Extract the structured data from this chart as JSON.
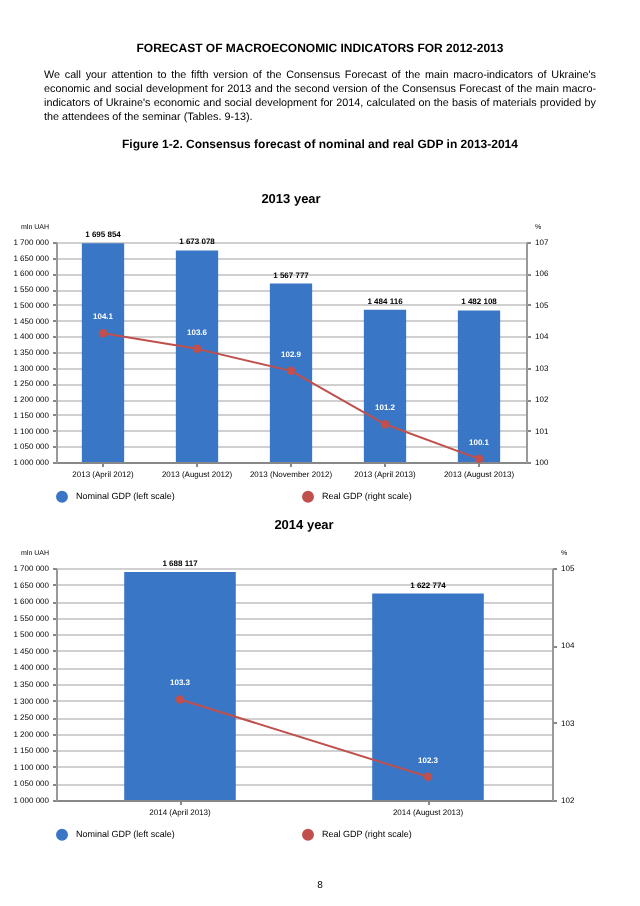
{
  "chart_data": [
    {
      "type": "bar",
      "title": "2013 year",
      "ylabel": "mln UAH",
      "y2label": "%",
      "annotations": [
        "FORECAST OF MACROECONOMIC INDICATORS FOR 2012-2013",
        "We call your attention to the fifth version of the Consensus Forecast of the main macro-indicators of Ukraine's economic and social development for 2013 and the second version of the Consensus Forecast of the main macro-indicators of Ukraine's economic and social development for 2014, calculated on the basis of materials provided by the attendees of the seminar (Tables. 9-13).",
        "Figure 1-2. Consensus forecast of nominal and real GDP in 2013-2014"
      ],
      "categories": [
        "2013 (April 2012)",
        "2013 (August 2012)",
        "2013 (November 2012)",
        "2013 (April 2013)",
        "2013 (August 2013)"
      ],
      "series": [
        {
          "name": "Nominal GDP (left scale)",
          "color": "#3a76c6",
          "values": [
            1695854,
            1673078,
            1567777,
            1484116,
            1482108
          ],
          "value_labels": [
            "1 695 854",
            "1 673 078",
            "1 567 777",
            "1 484 116",
            "1 482 108"
          ]
        },
        {
          "name": "Real GDP (right scale)",
          "type": "line",
          "axis": "y2",
          "color": "#c0504d",
          "values": [
            104.1,
            103.6,
            102.9,
            101.2,
            100.1
          ],
          "value_labels": [
            "104.1",
            "103.6",
            "102.9",
            "101.2",
            "100.1"
          ]
        }
      ],
      "ylim": [
        1000000,
        1700000
      ],
      "yticks": [
        {
          "value": 1000000,
          "label": "1 000 000"
        },
        {
          "value": 1050000,
          "label": "1 050 000"
        },
        {
          "value": 1100000,
          "label": "1 100 000"
        },
        {
          "value": 1150000,
          "label": "1 150 000"
        },
        {
          "value": 1200000,
          "label": "1 200 000"
        },
        {
          "value": 1250000,
          "label": "1 250 000"
        },
        {
          "value": 1300000,
          "label": "1 300 000"
        },
        {
          "value": 1350000,
          "label": "1 350 000"
        },
        {
          "value": 1400000,
          "label": "1 400 000"
        },
        {
          "value": 1450000,
          "label": "1 450 000"
        },
        {
          "value": 1500000,
          "label": "1 500 000"
        },
        {
          "value": 1550000,
          "label": "1 550 000"
        },
        {
          "value": 1600000,
          "label": "1 600 000"
        },
        {
          "value": 1650000,
          "label": "1 650 000"
        },
        {
          "value": 1700000,
          "label": "1 700 000"
        }
      ],
      "y2lim": [
        100,
        107
      ],
      "y2ticks": [
        100,
        101,
        102,
        103,
        104,
        105,
        106,
        107
      ],
      "grid": "y",
      "legend": "bottom",
      "marker": "circle"
    },
    {
      "type": "bar",
      "title": "2014 year",
      "ylabel": "mln UAH",
      "y2label": "%",
      "annotations": [
        "8"
      ],
      "categories": [
        "2014 (April 2013)",
        "2014 (August 2013)"
      ],
      "series": [
        {
          "name": "Nominal GDP (left scale)",
          "color": "#3a76c6",
          "values": [
            1688117,
            1622774
          ],
          "value_labels": [
            "1 688 117",
            "1 622 774"
          ]
        },
        {
          "name": "Real GDP (right scale)",
          "type": "line",
          "axis": "y2",
          "color": "#c0504d",
          "values": [
            103.3,
            102.3
          ],
          "value_labels": [
            "103.3",
            "102.3"
          ]
        }
      ],
      "ylim": [
        1000000,
        1700000
      ],
      "yticks": [
        {
          "value": 1000000,
          "label": "1 000 000"
        },
        {
          "value": 1050000,
          "label": "1 050 000"
        },
        {
          "value": 1100000,
          "label": "1 100 000"
        },
        {
          "value": 1150000,
          "label": "1 150 000"
        },
        {
          "value": 1200000,
          "label": "1 200 000"
        },
        {
          "value": 1250000,
          "label": "1 250 000"
        },
        {
          "value": 1300000,
          "label": "1 300 000"
        },
        {
          "value": 1350000,
          "label": "1 350 000"
        },
        {
          "value": 1400000,
          "label": "1 400 000"
        },
        {
          "value": 1450000,
          "label": "1 450 000"
        },
        {
          "value": 1500000,
          "label": "1 500 000"
        },
        {
          "value": 1550000,
          "label": "1 550 000"
        },
        {
          "value": 1600000,
          "label": "1 600 000"
        },
        {
          "value": 1650000,
          "label": "1 650 000"
        },
        {
          "value": 1700000,
          "label": "1 700 000"
        }
      ],
      "y2lim": [
        102,
        105
      ],
      "y2ticks": [
        102,
        103,
        104,
        105
      ],
      "grid": "y",
      "legend": "bottom",
      "marker": "circle"
    }
  ]
}
